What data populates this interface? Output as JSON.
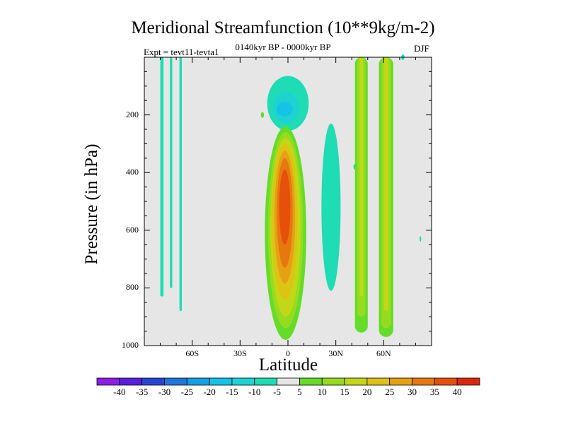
{
  "header": {
    "title": "Meridional Streamfunction (10**9kg/m-2)",
    "experiment": "Expt = tevt11-tevta1",
    "period": "0140kyr BP - 0000kyr BP",
    "season": "DJF"
  },
  "chart_data": {
    "type": "heatmap",
    "title": "Meridional Streamfunction (10**9kg/m-2)",
    "xlabel": "Latitude",
    "ylabel": "Pressure (in hPa)",
    "xlim": [
      -90,
      90
    ],
    "ylim": [
      1000,
      0
    ],
    "x_ticks": [
      {
        "value": -60,
        "label": "60S"
      },
      {
        "value": -30,
        "label": "30S"
      },
      {
        "value": 0,
        "label": "0"
      },
      {
        "value": 30,
        "label": "30N"
      },
      {
        "value": 60,
        "label": "60N"
      }
    ],
    "y_ticks": [
      {
        "value": 200,
        "label": "200"
      },
      {
        "value": 400,
        "label": "400"
      },
      {
        "value": 600,
        "label": "600"
      },
      {
        "value": 800,
        "label": "800"
      },
      {
        "value": 1000,
        "label": "1000"
      }
    ],
    "colorbar": {
      "labels": [
        "-40",
        "-35",
        "-30",
        "-25",
        "-20",
        "-15",
        "-10",
        "-5",
        "5",
        "10",
        "15",
        "20",
        "25",
        "30",
        "35",
        "40"
      ],
      "colors": [
        "#8c1ee6",
        "#5a1edc",
        "#2846d2",
        "#1e78dc",
        "#14a0e6",
        "#14c3e6",
        "#1ed2d2",
        "#1edcb4",
        "#e6e6e6",
        "#64dc28",
        "#96dc1e",
        "#c3d719",
        "#dcc314",
        "#e6a014",
        "#e6780f",
        "#e6500a",
        "#dc280a"
      ]
    },
    "features": [
      {
        "name": "equatorial cell (positive, max ~35)",
        "lat_range": [
          -15,
          12
        ],
        "pressure_range": [
          230,
          980
        ],
        "peak": 35
      },
      {
        "name": "upper tropical negative (~-20)",
        "lat_range": [
          -10,
          10
        ],
        "pressure_range": [
          70,
          280
        ],
        "peak": -20
      },
      {
        "name": "northern subtropical negative (~-5)",
        "lat_range": [
          22,
          33
        ],
        "pressure_range": [
          250,
          830
        ],
        "peak": -5
      },
      {
        "name": "column positive 45N",
        "lat_range": [
          42,
          50
        ],
        "pressure_range": [
          0,
          960
        ],
        "peak": 10
      },
      {
        "name": "column positive 62N",
        "lat_range": [
          57,
          65
        ],
        "pressure_range": [
          0,
          970
        ],
        "peak": 15
      },
      {
        "name": "southern polar negative strips",
        "lat_range": [
          -80,
          -62
        ],
        "pressure_range": [
          0,
          880
        ],
        "peak": -5
      }
    ]
  }
}
